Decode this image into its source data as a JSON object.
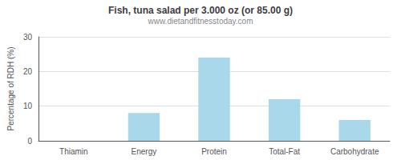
{
  "chart_data": {
    "type": "bar",
    "title": "Fish, tuna salad per 3.000 oz (or 85.00 g)",
    "subtitle": "www.dietandfitnesstoday.com",
    "categories": [
      "Thiamin",
      "Energy",
      "Protein",
      "Total-Fat",
      "Carbohydrate"
    ],
    "values": [
      0.0,
      8.0,
      24.0,
      12.0,
      6.0
    ],
    "color": "#a8d8ea",
    "ylabel": "Percentage of RDH (%)",
    "ylim": [
      0,
      30
    ],
    "yticks": [
      0,
      10,
      20,
      30
    ],
    "grid": true
  }
}
